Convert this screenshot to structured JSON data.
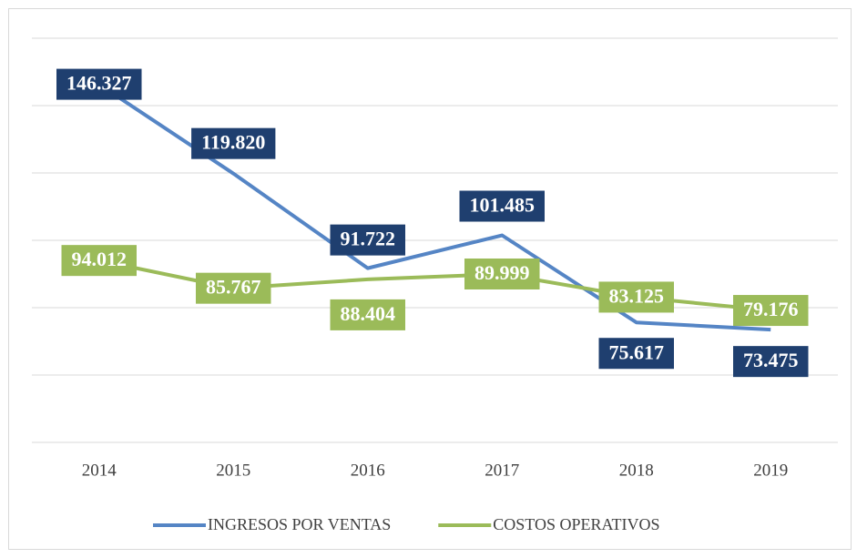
{
  "chart_data": {
    "type": "line",
    "categories": [
      "2014",
      "2015",
      "2016",
      "2017",
      "2018",
      "2019"
    ],
    "series": [
      {
        "name": "INGRESOS POR VENTAS",
        "color": "#5585c5",
        "label_color": "#1f3f6f",
        "values": [
          146327,
          119820,
          91722,
          101485,
          75617,
          73475
        ],
        "value_labels": [
          "146.327",
          "119.820",
          "91.722",
          "101.485",
          "75.617",
          "73.475"
        ]
      },
      {
        "name": "COSTOS OPERATIVOS",
        "color": "#9bbb59",
        "label_color": "#9bbb59",
        "values": [
          94012,
          85767,
          88404,
          89999,
          83125,
          79176
        ],
        "value_labels": [
          "94.012",
          "85.767",
          "88.404",
          "89.999",
          "83.125",
          "79.176"
        ]
      }
    ],
    "ylim": [
      40000,
      160000
    ],
    "yticks": [
      40000,
      60000,
      80000,
      100000,
      120000,
      140000,
      160000
    ],
    "grid": true,
    "legend": "bottom"
  }
}
